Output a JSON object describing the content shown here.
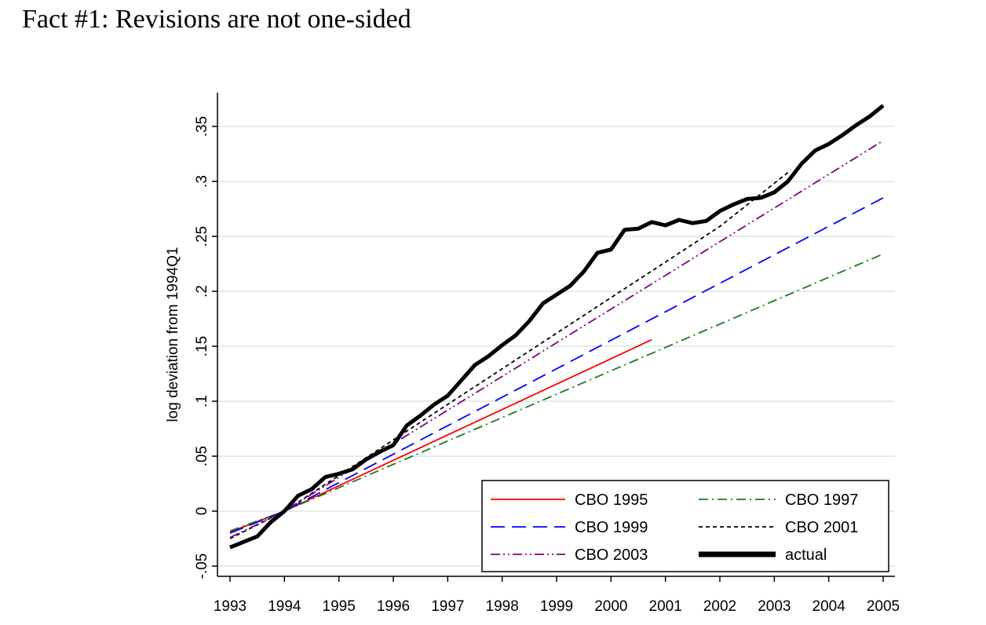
{
  "slide": {
    "title": "Fact #1: Revisions are not one-sided"
  },
  "chart_data": {
    "type": "line",
    "title": "",
    "xlabel": "",
    "ylabel": "log deviation from 1994Q1",
    "xlim": [
      1993,
      2005
    ],
    "ylim": [
      -0.05,
      0.37
    ],
    "x_ticks": [
      1993,
      1994,
      1995,
      1996,
      1997,
      1998,
      1999,
      2000,
      2001,
      2002,
      2003,
      2004,
      2005
    ],
    "y_ticks": [
      {
        "value": -0.05,
        "label": "-.05"
      },
      {
        "value": 0,
        "label": "0"
      },
      {
        "value": 0.05,
        "label": ".05"
      },
      {
        "value": 0.1,
        "label": ".1"
      },
      {
        "value": 0.15,
        "label": ".15"
      },
      {
        "value": 0.2,
        "label": ".2"
      },
      {
        "value": 0.25,
        "label": ".25"
      },
      {
        "value": 0.3,
        "label": ".3"
      },
      {
        "value": 0.35,
        "label": ".35"
      }
    ],
    "grid": "horizontal",
    "legend_position": "bottom-right",
    "series": [
      {
        "name": "CBO 1995",
        "color": "#ff0000",
        "dash": "solid",
        "x": [
          1993.0,
          1994.0,
          2000.75
        ],
        "y": [
          -0.019,
          0.0,
          0.156
        ]
      },
      {
        "name": "CBO 1997",
        "color": "#1a7a1a",
        "dash": "dashdot",
        "x": [
          1993.0,
          1994.0,
          2005.0
        ],
        "y": [
          -0.018,
          0.0,
          0.234
        ]
      },
      {
        "name": "CBO 1999",
        "color": "#0000ff",
        "dash": "longdash",
        "x": [
          1993.0,
          1994.0,
          2005.0
        ],
        "y": [
          -0.02,
          0.0,
          0.285
        ]
      },
      {
        "name": "CBO 2001",
        "color": "#000000",
        "dash": "shortdash",
        "x": [
          1993.0,
          1994.0,
          2002.0,
          2003.3
        ],
        "y": [
          -0.025,
          0.0,
          0.259,
          0.31
        ]
      },
      {
        "name": "CBO 2003",
        "color": "#800080",
        "dash": "dashdotdot",
        "x": [
          1993.0,
          1994.0,
          2005.0
        ],
        "y": [
          -0.024,
          0.0,
          0.337
        ]
      },
      {
        "name": "actual",
        "color": "#000000",
        "dash": "solid",
        "thick": true,
        "x": [
          1993.0,
          1993.25,
          1993.5,
          1993.75,
          1994.0,
          1994.25,
          1994.5,
          1994.75,
          1995.0,
          1995.25,
          1995.5,
          1995.75,
          1996.0,
          1996.25,
          1996.5,
          1996.75,
          1997.0,
          1997.25,
          1997.5,
          1997.75,
          1998.0,
          1998.25,
          1998.5,
          1998.75,
          1999.0,
          1999.25,
          1999.5,
          1999.75,
          2000.0,
          2000.25,
          2000.5,
          2000.75,
          2001.0,
          2001.25,
          2001.5,
          2001.75,
          2002.0,
          2002.25,
          2002.5,
          2002.75,
          2003.0,
          2003.25,
          2003.5,
          2003.75,
          2004.0,
          2004.25,
          2004.5,
          2004.75,
          2005.0
        ],
        "y": [
          -0.033,
          -0.028,
          -0.023,
          -0.01,
          0.0,
          0.014,
          0.02,
          0.031,
          0.034,
          0.038,
          0.047,
          0.054,
          0.06,
          0.078,
          0.087,
          0.097,
          0.105,
          0.119,
          0.133,
          0.141,
          0.151,
          0.16,
          0.173,
          0.189,
          0.197,
          0.205,
          0.218,
          0.235,
          0.238,
          0.256,
          0.257,
          0.263,
          0.26,
          0.265,
          0.262,
          0.264,
          0.273,
          0.279,
          0.284,
          0.285,
          0.29,
          0.3,
          0.316,
          0.328,
          0.334,
          0.342,
          0.351,
          0.359,
          0.369
        ]
      }
    ]
  }
}
